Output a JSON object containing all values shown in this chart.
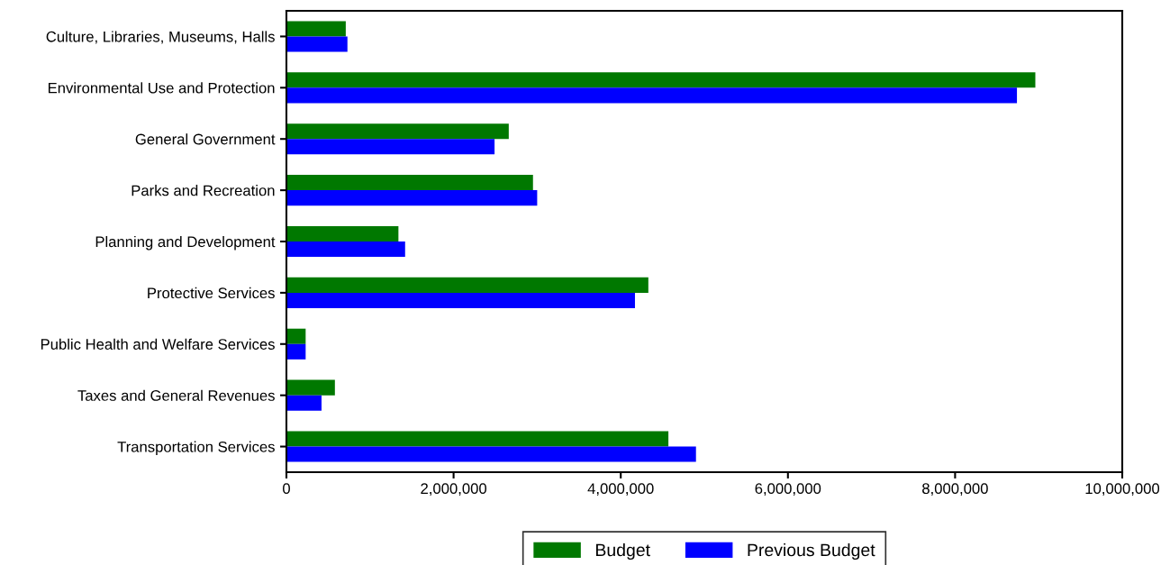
{
  "chart_data": {
    "type": "bar",
    "orientation": "horizontal",
    "categories": [
      "Culture, Libraries, Museums, Halls",
      "Environmental Use and Protection",
      "General Government",
      "Parks and Recreation",
      "Planning and Development",
      "Protective Services",
      "Public Health and Welfare Services",
      "Taxes and General Revenues",
      "Transportation Services"
    ],
    "series": [
      {
        "name": "Budget",
        "color": "#007800",
        "values": [
          710000,
          8960000,
          2660000,
          2950000,
          1340000,
          4330000,
          230000,
          580000,
          4570000
        ]
      },
      {
        "name": "Previous Budget",
        "color": "#0000ff",
        "values": [
          730000,
          8740000,
          2490000,
          3000000,
          1420000,
          4170000,
          230000,
          420000,
          4900000
        ]
      }
    ],
    "xlim": [
      0,
      10000000
    ],
    "xticks": [
      0,
      {
        "value": 2000000,
        "label": "2,000,000"
      },
      {
        "value": 4000000,
        "label": "4,000,000"
      },
      {
        "value": 6000000,
        "label": "6,000,000"
      },
      {
        "value": 8000000,
        "label": "8,000,000"
      },
      {
        "value": 10000000,
        "label": "10,000,000"
      }
    ],
    "grid": false,
    "legend": "bottom"
  }
}
